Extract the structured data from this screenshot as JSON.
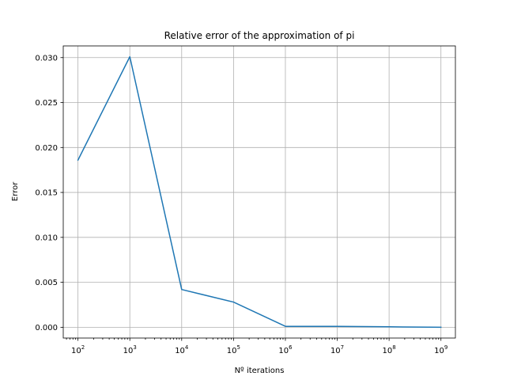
{
  "chart_data": {
    "type": "line",
    "title": "Relative error of the approximation of pi",
    "xlabel": "Nº iterations",
    "ylabel": "Error",
    "xscale": "log",
    "grid": true,
    "legend": "none",
    "xlim": [
      52,
      1900000000
    ],
    "ylim": [
      -0.0012,
      0.0313
    ],
    "x_ticks": [
      {
        "value": 100,
        "base": "10",
        "exp": "2"
      },
      {
        "value": 1000,
        "base": "10",
        "exp": "3"
      },
      {
        "value": 10000,
        "base": "10",
        "exp": "4"
      },
      {
        "value": 100000,
        "base": "10",
        "exp": "5"
      },
      {
        "value": 1000000,
        "base": "10",
        "exp": "6"
      },
      {
        "value": 10000000,
        "base": "10",
        "exp": "7"
      },
      {
        "value": 100000000,
        "base": "10",
        "exp": "8"
      },
      {
        "value": 1000000000,
        "base": "10",
        "exp": "9"
      }
    ],
    "y_ticks": [
      {
        "value": 0.0,
        "label": "0.000"
      },
      {
        "value": 0.005,
        "label": "0.005"
      },
      {
        "value": 0.01,
        "label": "0.010"
      },
      {
        "value": 0.015,
        "label": "0.015"
      },
      {
        "value": 0.02,
        "label": "0.020"
      },
      {
        "value": 0.025,
        "label": "0.025"
      },
      {
        "value": 0.03,
        "label": "0.030"
      }
    ],
    "series": [
      {
        "color": "#1f77b4",
        "x": [
          100,
          1000,
          10000,
          100000,
          1000000,
          10000000,
          100000000,
          1000000000
        ],
        "y": [
          0.0186,
          0.0301,
          0.0042,
          0.0028,
          0.0001,
          0.0001,
          5e-05,
          0.0
        ]
      }
    ]
  }
}
